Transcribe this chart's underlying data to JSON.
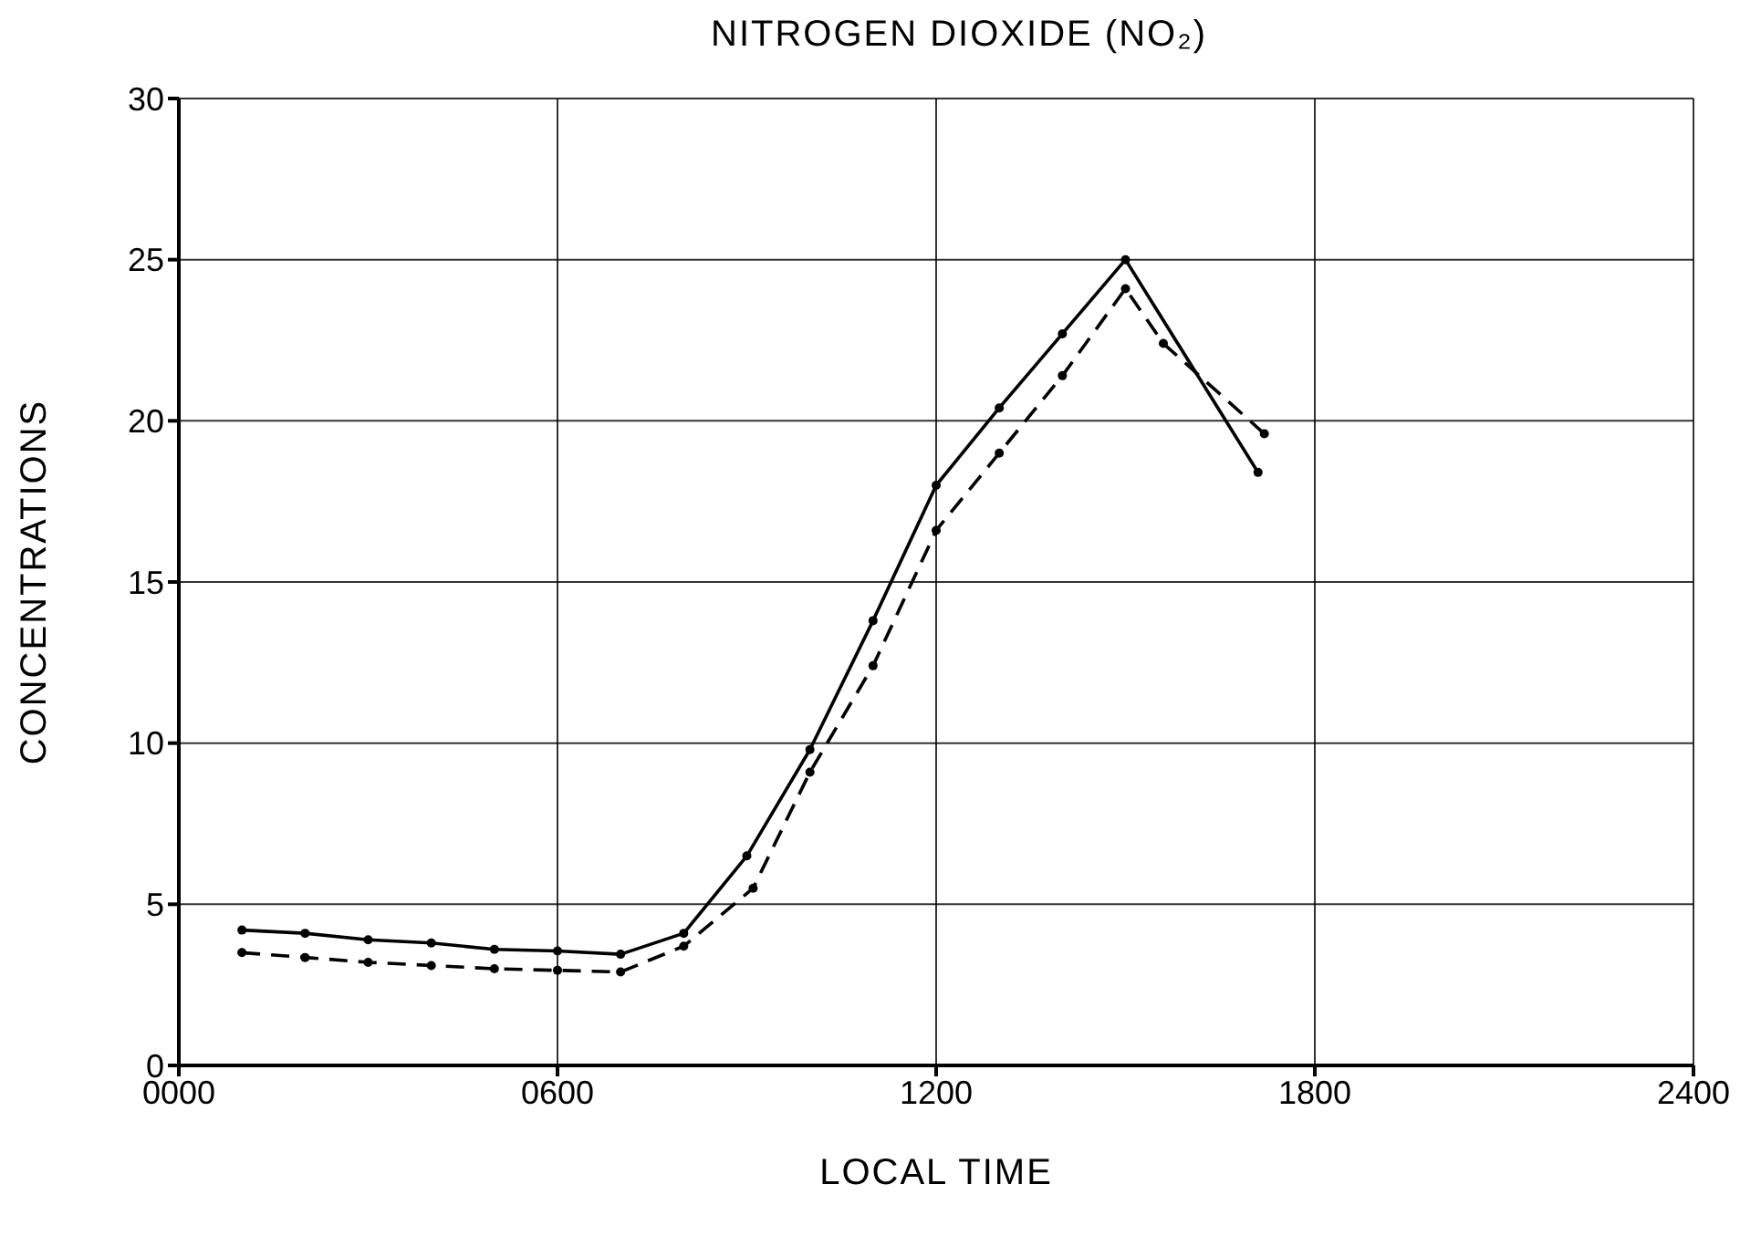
{
  "chart_data": {
    "type": "line",
    "title": "NITROGEN DIOXIDE (NO₂)",
    "xlabel": "LOCAL TIME",
    "ylabel": "CONCENTRATIONS",
    "xlim": [
      0,
      2400
    ],
    "xticks": [
      {
        "value": 0,
        "label": "0000"
      },
      {
        "value": 600,
        "label": "0600"
      },
      {
        "value": 1200,
        "label": "1200"
      },
      {
        "value": 1800,
        "label": "1800"
      },
      {
        "value": 2400,
        "label": "2400"
      }
    ],
    "ylim": [
      0,
      30
    ],
    "yticks": [
      0,
      5,
      10,
      15,
      20,
      25,
      30
    ],
    "grid": true,
    "marker": "circle",
    "series": [
      {
        "color": "#000000",
        "line_style": "solid",
        "x": [
          100,
          200,
          300,
          400,
          500,
          600,
          700,
          800,
          900,
          1000,
          1100,
          1200,
          1300,
          1400,
          1500,
          1710
        ],
        "values": [
          4.2,
          4.1,
          3.9,
          3.8,
          3.6,
          3.55,
          3.45,
          4.1,
          6.5,
          9.8,
          13.8,
          18,
          20.4,
          22.7,
          25,
          18.4
        ]
      },
      {
        "color": "#000000",
        "line_style": "dashed",
        "x": [
          100,
          200,
          300,
          400,
          500,
          600,
          700,
          800,
          910,
          1000,
          1100,
          1200,
          1300,
          1400,
          1500,
          1560,
          1720
        ],
        "values": [
          3.5,
          3.35,
          3.2,
          3.1,
          3,
          2.95,
          2.9,
          3.7,
          5.5,
          9.1,
          12.4,
          16.6,
          19,
          21.4,
          24.1,
          22.4,
          19.6
        ]
      }
    ]
  }
}
